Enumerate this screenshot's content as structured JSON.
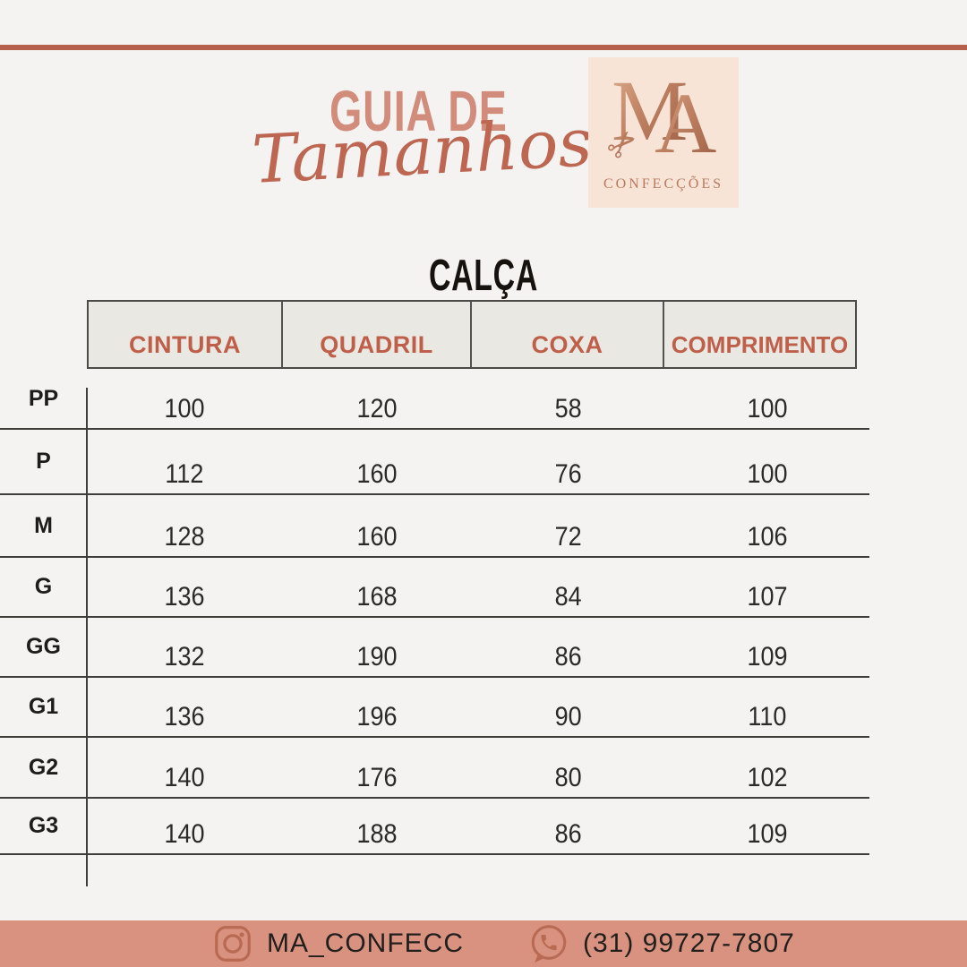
{
  "colors": {
    "background": "#f4f3f1",
    "accent_line": "#b4604c",
    "title_salmon": "#d28c7c",
    "script_terracotta": "#bd6752",
    "header_text": "#c05f49",
    "header_fill": "#e9e8e3",
    "grid_line": "#3f3d3a",
    "footer_bar": "#d8927f",
    "footer_icon": "#b96a52",
    "logo_background": "#f7e4d6",
    "logo_copper": "#b97a5e",
    "text_dark": "#211f1d"
  },
  "header": {
    "title_line1": "GUIA DE",
    "title_line2": "Tamanhos",
    "logo": {
      "monogram_m": "M",
      "monogram_a": "A",
      "scissors_icon": "✂",
      "subtitle": "CONFECÇÕES"
    }
  },
  "table": {
    "title": "CALÇA",
    "columns": [
      "CINTURA",
      "QUADRIL",
      "COXA",
      "COMPRIMENTO"
    ],
    "rows": [
      {
        "size": "PP",
        "values": [
          "100",
          "120",
          "58",
          "100"
        ]
      },
      {
        "size": "P",
        "values": [
          "112",
          "160",
          "76",
          "100"
        ]
      },
      {
        "size": "M",
        "values": [
          "128",
          "160",
          "72",
          "106"
        ]
      },
      {
        "size": "G",
        "values": [
          "136",
          "168",
          "84",
          "107"
        ]
      },
      {
        "size": "GG",
        "values": [
          "132",
          "190",
          "86",
          "109"
        ]
      },
      {
        "size": "G1",
        "values": [
          "136",
          "196",
          "90",
          "110"
        ]
      },
      {
        "size": "G2",
        "values": [
          "140",
          "176",
          "80",
          "102"
        ]
      },
      {
        "size": "G3",
        "values": [
          "140",
          "188",
          "86",
          "109"
        ]
      }
    ]
  },
  "footer": {
    "instagram_handle": "MA_CONFECC",
    "phone_number": "(31) 99727-7807"
  }
}
